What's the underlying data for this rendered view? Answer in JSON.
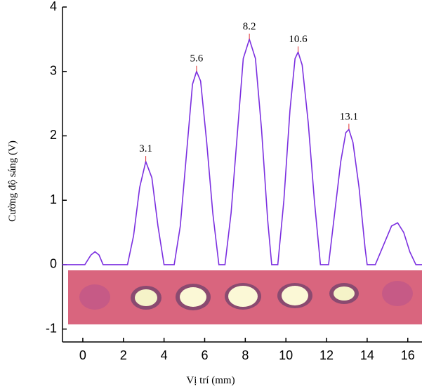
{
  "chart_data": {
    "type": "line",
    "x_label": "Vị trí (mm)",
    "y_label": "Cường độ sáng (V)",
    "x": [
      -1,
      0.1,
      0.4,
      0.6,
      0.8,
      1.0,
      2.2,
      2.5,
      2.8,
      3.1,
      3.4,
      3.7,
      4.0,
      4.5,
      4.8,
      5.1,
      5.4,
      5.6,
      5.8,
      6.1,
      6.4,
      6.7,
      7.0,
      7.3,
      7.6,
      7.9,
      8.2,
      8.5,
      8.8,
      9.1,
      9.3,
      9.6,
      9.9,
      10.2,
      10.45,
      10.6,
      10.8,
      11.1,
      11.4,
      11.7,
      12.1,
      12.4,
      12.7,
      12.95,
      13.1,
      13.3,
      13.6,
      13.9,
      14.0,
      14.4,
      14.8,
      15.2,
      15.5,
      15.8,
      16.1,
      16.4,
      16.7
    ],
    "series": [
      {
        "color": "#7b2fe0",
        "values": [
          0,
          0,
          0.15,
          0.2,
          0.15,
          0,
          0,
          0.45,
          1.2,
          1.6,
          1.35,
          0.6,
          0,
          0,
          0.6,
          1.7,
          2.8,
          3.0,
          2.85,
          1.9,
          0.8,
          0,
          0,
          0.8,
          2.0,
          3.2,
          3.5,
          3.2,
          2.1,
          0.7,
          0,
          0,
          1.0,
          2.4,
          3.2,
          3.3,
          3.1,
          2.2,
          1.0,
          0,
          0,
          0.8,
          1.6,
          2.05,
          2.1,
          1.9,
          1.2,
          0.25,
          0,
          0,
          0.3,
          0.6,
          0.65,
          0.5,
          0.2,
          0,
          0
        ]
      }
    ],
    "peak_labels": [
      {
        "x": 3.1,
        "y": 1.6
      },
      {
        "x": 5.6,
        "y": 3.0
      },
      {
        "x": 8.2,
        "y": 3.5
      },
      {
        "x": 10.6,
        "y": 3.3
      },
      {
        "x": 13.1,
        "y": 2.1
      }
    ],
    "xlim": [
      -1,
      16.7
    ],
    "ylim": [
      -1.2,
      4
    ],
    "xticks": [
      0,
      2,
      4,
      6,
      8,
      10,
      12,
      14,
      16
    ],
    "yticks": [
      -1,
      0,
      1,
      2,
      3,
      4
    ]
  }
}
